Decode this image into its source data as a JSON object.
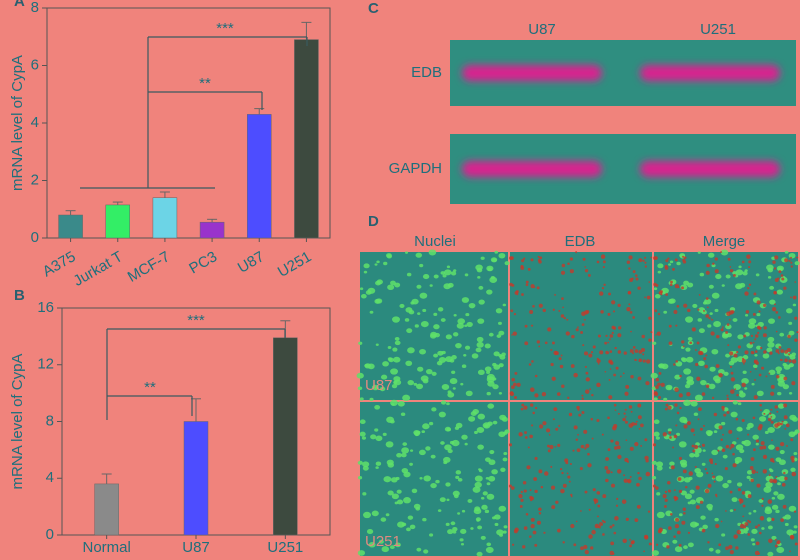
{
  "chart_data": [
    {
      "type": "bar",
      "panel_label": "A",
      "y_label": "mRNA level of CypA",
      "categories": [
        "A375",
        "Jurkat T",
        "MCF-7",
        "PC3",
        "U87",
        "U251"
      ],
      "values": [
        0.8,
        1.15,
        1.4,
        0.55,
        4.3,
        6.9
      ],
      "errors": [
        0.15,
        0.1,
        0.2,
        0.1,
        0.2,
        0.6
      ],
      "colors": [
        "#3a8a8a",
        "#33ee66",
        "#6cd4e6",
        "#9933cc",
        "#4d4dff",
        "#3d4a3f"
      ],
      "ylim": [
        0,
        8
      ],
      "yticks": [
        0,
        2,
        4,
        6,
        8
      ],
      "annotations": [
        "**",
        "***"
      ]
    },
    {
      "type": "bar",
      "panel_label": "B",
      "y_label": "mRNA level of CypA",
      "categories": [
        "Normal",
        "U87",
        "U251"
      ],
      "values": [
        3.6,
        8.0,
        13.9
      ],
      "errors": [
        0.7,
        1.6,
        1.2
      ],
      "colors": [
        "#8a8a8a",
        "#4d4dff",
        "#3d4a3f"
      ],
      "ylim": [
        0,
        16
      ],
      "yticks": [
        0,
        4,
        8,
        12,
        16
      ],
      "annotations": [
        "**",
        "***"
      ]
    }
  ],
  "blot": {
    "panel_label": "C",
    "lanes": [
      "U87",
      "U251"
    ],
    "rows": [
      "EDB",
      "GAPDH"
    ]
  },
  "micrographs": {
    "panel_label": "D",
    "columns": [
      "Nuclei",
      "EDB",
      "Merge"
    ],
    "rows": [
      "U87",
      "U251"
    ]
  }
}
